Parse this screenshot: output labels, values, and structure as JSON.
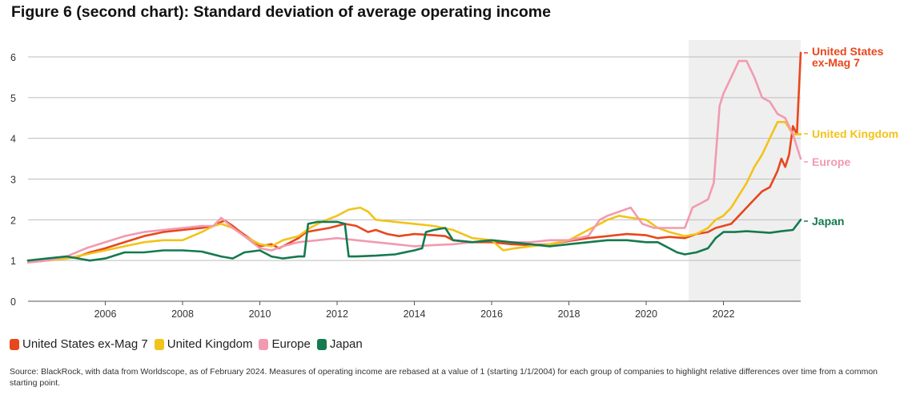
{
  "title": "Figure 6 (second chart): Standard deviation of average operating income",
  "source": "Source: BlackRock, with data from Worldscope, as of February 2024. Measures of operating income are rebased at a value of 1 (starting 1/1/2004) for each group of companies to highlight relative differences over time from a common starting point.",
  "chart_data": {
    "type": "line",
    "title": "Figure 6 (second chart): Standard deviation of average operating income",
    "xlabel": "",
    "ylabel": "",
    "xlim": [
      2004.0,
      2024.0
    ],
    "ylim": [
      0,
      6
    ],
    "y_ticks": [
      0,
      1,
      2,
      3,
      4,
      5,
      6
    ],
    "x_ticks": [
      2006,
      2008,
      2010,
      2012,
      2014,
      2016,
      2018,
      2020,
      2022
    ],
    "x_tick_labels": [
      "2006",
      "2008",
      "2010",
      "2012",
      "2014",
      "2016",
      "2018",
      "2020",
      "2022"
    ],
    "grid": "horizontal",
    "shaded_region": [
      2021.1,
      2024.0
    ],
    "legend_position": "bottom-left",
    "series": [
      {
        "name": "United States ex-Mag 7",
        "end_label": [
          "United States",
          "ex-Mag 7"
        ],
        "color": "#e8471c",
        "x": [
          2004.0,
          2004.3,
          2004.6,
          2005.0,
          2005.3,
          2005.6,
          2006.0,
          2006.5,
          2007.0,
          2007.5,
          2008.0,
          2008.5,
          2008.8,
          2009.0,
          2009.1,
          2009.3,
          2009.5,
          2009.8,
          2010.0,
          2010.3,
          2010.5,
          2010.8,
          2011.0,
          2011.2,
          2011.5,
          2011.8,
          2012.0,
          2012.2,
          2012.5,
          2012.8,
          2013.0,
          2013.3,
          2013.6,
          2014.0,
          2014.5,
          2014.8,
          2015.0,
          2015.5,
          2016.0,
          2016.5,
          2017.0,
          2017.5,
          2018.0,
          2018.5,
          2019.0,
          2019.5,
          2020.0,
          2020.3,
          2020.6,
          2021.0,
          2021.3,
          2021.6,
          2021.8,
          2022.0,
          2022.2,
          2022.4,
          2022.6,
          2022.8,
          2023.0,
          2023.2,
          2023.4,
          2023.5,
          2023.6,
          2023.7,
          2023.8,
          2023.9,
          2024.0
        ],
        "values": [
          1.0,
          0.98,
          1.02,
          1.05,
          1.1,
          1.2,
          1.3,
          1.45,
          1.6,
          1.7,
          1.75,
          1.8,
          1.85,
          1.95,
          1.98,
          1.85,
          1.7,
          1.5,
          1.35,
          1.4,
          1.3,
          1.45,
          1.55,
          1.7,
          1.75,
          1.8,
          1.85,
          1.9,
          1.85,
          1.7,
          1.75,
          1.65,
          1.6,
          1.65,
          1.62,
          1.6,
          1.5,
          1.45,
          1.45,
          1.4,
          1.38,
          1.4,
          1.48,
          1.55,
          1.6,
          1.65,
          1.62,
          1.55,
          1.58,
          1.55,
          1.65,
          1.7,
          1.8,
          1.85,
          1.9,
          2.1,
          2.3,
          2.5,
          2.7,
          2.8,
          3.2,
          3.5,
          3.3,
          3.6,
          4.3,
          4.1,
          6.1
        ]
      },
      {
        "name": "United Kingdom",
        "end_label": [
          "United Kingdom"
        ],
        "color": "#f2c31a",
        "x": [
          2004.0,
          2004.5,
          2005.0,
          2005.5,
          2006.0,
          2006.5,
          2007.0,
          2007.5,
          2008.0,
          2008.5,
          2008.8,
          2009.0,
          2009.3,
          2009.6,
          2010.0,
          2010.3,
          2010.6,
          2011.0,
          2011.3,
          2011.6,
          2012.0,
          2012.3,
          2012.6,
          2012.8,
          2013.0,
          2013.5,
          2014.0,
          2014.5,
          2015.0,
          2015.5,
          2016.0,
          2016.3,
          2016.6,
          2017.0,
          2017.5,
          2018.0,
          2018.5,
          2019.0,
          2019.3,
          2019.6,
          2020.0,
          2020.3,
          2020.6,
          2021.0,
          2021.3,
          2021.6,
          2021.8,
          2022.0,
          2022.2,
          2022.4,
          2022.6,
          2022.8,
          2023.0,
          2023.2,
          2023.4,
          2023.6,
          2023.8,
          2024.0
        ],
        "values": [
          1.0,
          1.0,
          1.05,
          1.15,
          1.25,
          1.35,
          1.45,
          1.5,
          1.5,
          1.7,
          1.85,
          1.9,
          1.8,
          1.6,
          1.4,
          1.35,
          1.5,
          1.6,
          1.8,
          1.95,
          2.1,
          2.25,
          2.3,
          2.2,
          2.0,
          1.95,
          1.9,
          1.85,
          1.75,
          1.55,
          1.5,
          1.25,
          1.3,
          1.35,
          1.4,
          1.5,
          1.75,
          2.0,
          2.1,
          2.05,
          2.0,
          1.8,
          1.7,
          1.6,
          1.65,
          1.8,
          2.0,
          2.1,
          2.3,
          2.6,
          2.9,
          3.3,
          3.6,
          4.0,
          4.4,
          4.4,
          4.1,
          4.1
        ]
      },
      {
        "name": "Europe",
        "end_label": [
          "Europe"
        ],
        "color": "#f29ab0",
        "x": [
          2004.0,
          2004.5,
          2005.0,
          2005.5,
          2006.0,
          2006.5,
          2007.0,
          2007.5,
          2008.0,
          2008.5,
          2008.8,
          2009.0,
          2009.3,
          2009.6,
          2010.0,
          2010.3,
          2010.6,
          2011.0,
          2011.5,
          2012.0,
          2012.5,
          2013.0,
          2013.5,
          2014.0,
          2014.5,
          2015.0,
          2015.5,
          2016.0,
          2016.5,
          2017.0,
          2017.5,
          2018.0,
          2018.5,
          2018.8,
          2019.0,
          2019.3,
          2019.6,
          2019.9,
          2020.2,
          2020.6,
          2021.0,
          2021.2,
          2021.4,
          2021.6,
          2021.75,
          2021.9,
          2022.0,
          2022.2,
          2022.4,
          2022.6,
          2022.8,
          2023.0,
          2023.2,
          2023.4,
          2023.6,
          2023.8,
          2024.0
        ],
        "values": [
          0.95,
          1.0,
          1.1,
          1.3,
          1.45,
          1.6,
          1.7,
          1.75,
          1.8,
          1.85,
          1.85,
          2.05,
          1.8,
          1.6,
          1.3,
          1.25,
          1.35,
          1.45,
          1.5,
          1.55,
          1.5,
          1.45,
          1.4,
          1.35,
          1.38,
          1.4,
          1.45,
          1.5,
          1.45,
          1.45,
          1.5,
          1.5,
          1.6,
          2.0,
          2.1,
          2.2,
          2.3,
          1.9,
          1.8,
          1.8,
          1.8,
          2.3,
          2.4,
          2.5,
          2.9,
          4.8,
          5.1,
          5.5,
          5.9,
          5.9,
          5.5,
          5.0,
          4.9,
          4.6,
          4.5,
          4.1,
          3.5
        ]
      },
      {
        "name": "Japan",
        "end_label": [
          "Japan"
        ],
        "color": "#147a4f",
        "x": [
          2004.0,
          2004.5,
          2005.0,
          2005.3,
          2005.6,
          2006.0,
          2006.5,
          2007.0,
          2007.5,
          2008.0,
          2008.5,
          2009.0,
          2009.3,
          2009.6,
          2010.0,
          2010.3,
          2010.6,
          2011.0,
          2011.15,
          2011.25,
          2011.5,
          2011.8,
          2012.0,
          2012.2,
          2012.3,
          2012.5,
          2013.0,
          2013.5,
          2014.0,
          2014.2,
          2014.3,
          2014.5,
          2014.8,
          2015.0,
          2015.5,
          2016.0,
          2016.5,
          2017.0,
          2017.5,
          2018.0,
          2018.5,
          2019.0,
          2019.5,
          2020.0,
          2020.3,
          2020.6,
          2020.8,
          2021.0,
          2021.3,
          2021.6,
          2021.8,
          2022.0,
          2022.3,
          2022.6,
          2022.9,
          2023.2,
          2023.5,
          2023.8,
          2024.0
        ],
        "values": [
          1.0,
          1.05,
          1.1,
          1.05,
          1.0,
          1.05,
          1.2,
          1.2,
          1.25,
          1.25,
          1.22,
          1.1,
          1.05,
          1.2,
          1.25,
          1.1,
          1.05,
          1.1,
          1.1,
          1.9,
          1.95,
          1.95,
          1.95,
          1.9,
          1.1,
          1.1,
          1.12,
          1.15,
          1.25,
          1.3,
          1.7,
          1.75,
          1.8,
          1.5,
          1.45,
          1.5,
          1.45,
          1.4,
          1.35,
          1.4,
          1.45,
          1.5,
          1.5,
          1.45,
          1.45,
          1.3,
          1.2,
          1.15,
          1.2,
          1.3,
          1.55,
          1.7,
          1.7,
          1.72,
          1.7,
          1.68,
          1.72,
          1.75,
          2.0
        ]
      }
    ]
  }
}
